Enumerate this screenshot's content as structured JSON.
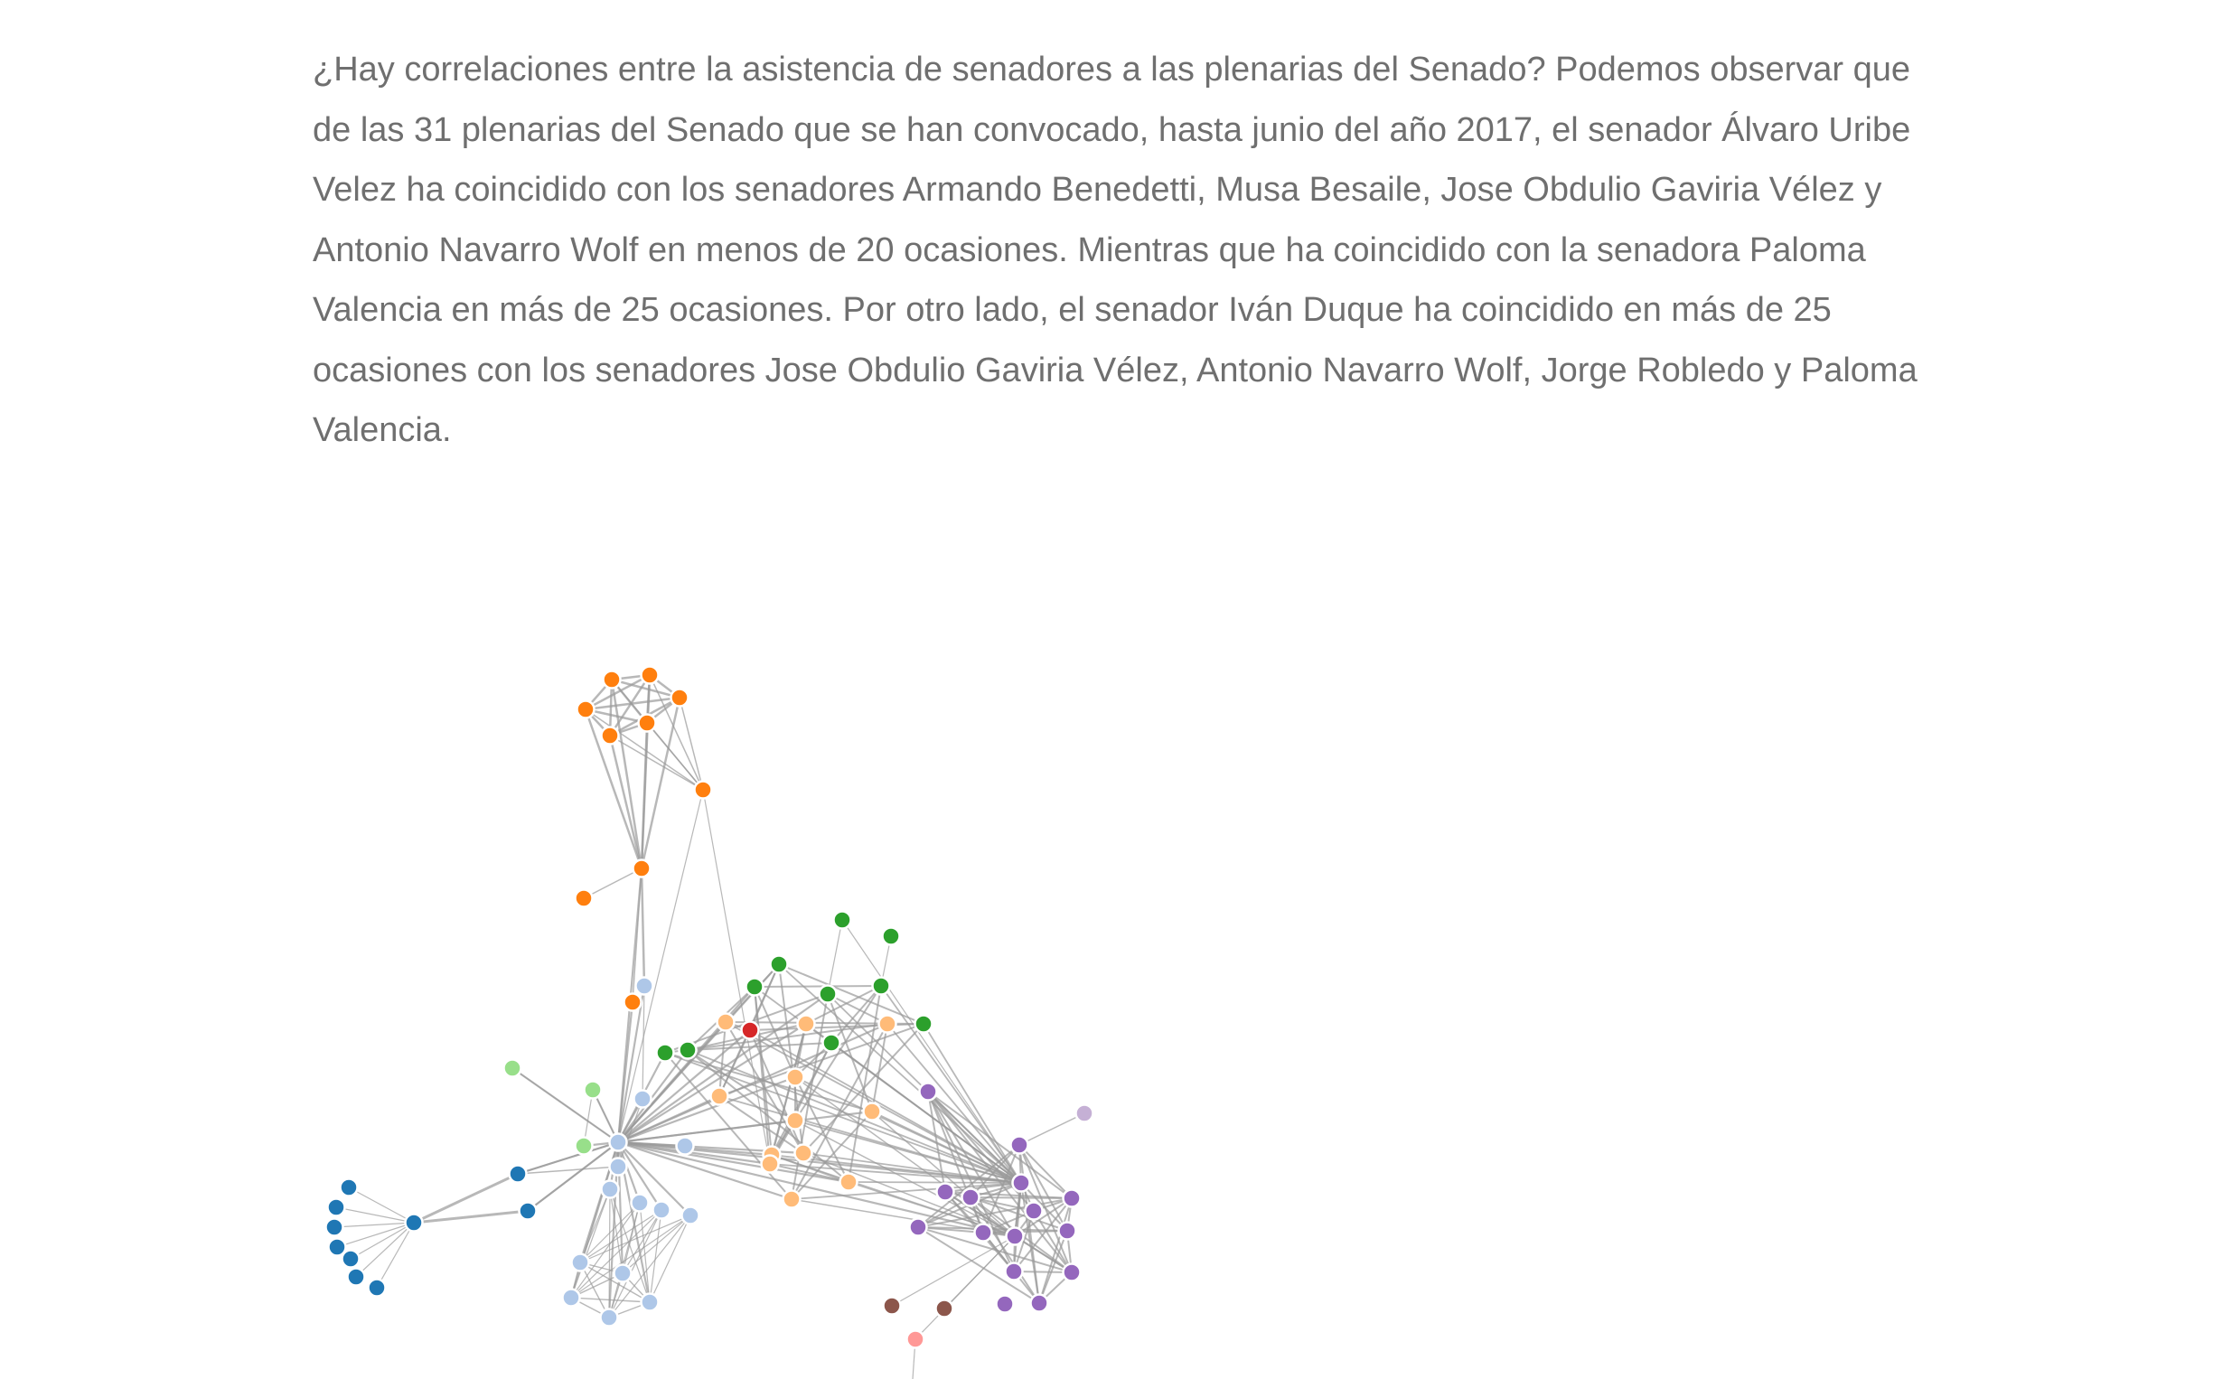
{
  "article": {
    "paragraph": "¿Hay correlaciones entre la asistencia de senadores a las plenarias del Senado? Podemos observar que de las 31 plenarias del Senado que se han convocado, hasta junio del año 2017, el senador Álvaro Uribe Velez ha coincidido con los senadores Armando Benedetti, Musa Besaile, Jose Obdulio Gaviria Vélez y Antonio Navarro Wolf en menos de 20 ocasiones. Mientras que ha coincidido con la senadora Paloma Valencia en más de 25 ocasiones. Por otro lado, el senador Iván Duque ha coincidido en más de 25 ocasiones con los senadores Jose Obdulio Gaviria Vélez, Antonio Navarro Wolf, Jorge Robledo y Paloma Valencia."
  },
  "network": {
    "group_colors": [
      "#1f77b4",
      "#ff7f0e",
      "#2ca02c",
      "#d62728",
      "#9467bd",
      "#8c564b",
      "#e377c2",
      "#7f7f7f",
      "#aec7e8",
      "#ffbb78",
      "#98df8a",
      "#c5b0d5",
      "#ff9896"
    ],
    "edge_color": "#9a9a9a"
  }
}
